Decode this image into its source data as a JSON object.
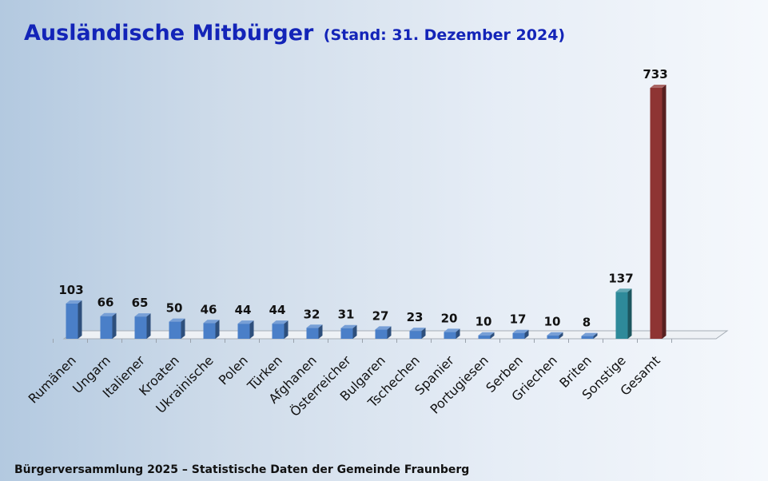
{
  "title": "Ausländische Mitbürger",
  "subtitle": "(Stand: 31. Dezember 2024)",
  "footer": "Bürgerversammlung 2025 – Statistische Daten der Gemeinde Fraunberg",
  "colors": {
    "title": "#1324b8",
    "bar_default": "#4a7fc8",
    "bar_sonstige": "#2e8a9a",
    "bar_gesamt": "#8e3433"
  },
  "chart_data": {
    "type": "bar",
    "title": "Ausländische Mitbürger",
    "subtitle": "(Stand: 31. Dezember 2024)",
    "xlabel": "",
    "ylabel": "",
    "ylim": [
      0,
      733
    ],
    "grid": false,
    "legend": "none",
    "categories": [
      "Rumänen",
      "Ungarn",
      "Italiener",
      "Kroaten",
      "Ukrainische",
      "Polen",
      "Türken",
      "Afghanen",
      "Österreicher",
      "Bulgaren",
      "Tschechen",
      "Spanier",
      "Portugiesen",
      "Serben",
      "Griechen",
      "Briten",
      "Sonstige",
      "Gesamt"
    ],
    "values": [
      103,
      66,
      65,
      50,
      46,
      44,
      44,
      32,
      31,
      27,
      23,
      20,
      10,
      17,
      10,
      8,
      137,
      733
    ],
    "data_labels": [
      "103",
      "66",
      "65",
      "50",
      "46",
      "44",
      "44",
      "32",
      "31",
      "27",
      "23",
      "20",
      "10",
      "17",
      "10",
      "8",
      "137",
      "733"
    ],
    "bar_colors": [
      "#4a7fc8",
      "#4a7fc8",
      "#4a7fc8",
      "#4a7fc8",
      "#4a7fc8",
      "#4a7fc8",
      "#4a7fc8",
      "#4a7fc8",
      "#4a7fc8",
      "#4a7fc8",
      "#4a7fc8",
      "#4a7fc8",
      "#4a7fc8",
      "#4a7fc8",
      "#4a7fc8",
      "#4a7fc8",
      "#2e8a9a",
      "#8e3433"
    ]
  }
}
